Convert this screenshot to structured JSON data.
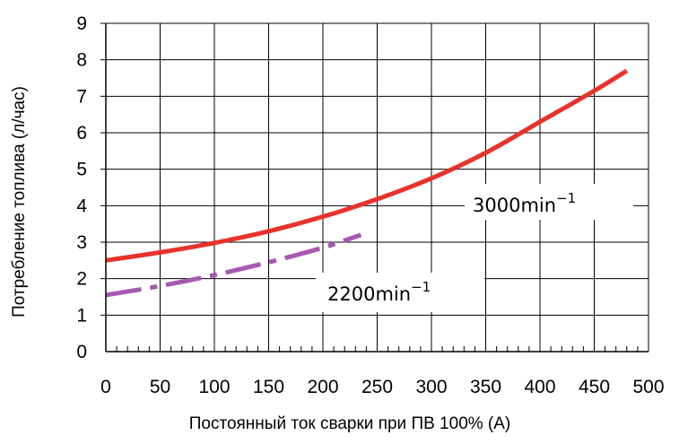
{
  "chart_data": {
    "type": "line",
    "title": "",
    "xlabel": "Постоянный ток сварки при ПВ 100% (A)",
    "ylabel": "Потребление топлива (л/час)",
    "xlim": [
      0,
      500
    ],
    "ylim": [
      0,
      9
    ],
    "xticks": [
      "0",
      "50",
      "100",
      "150",
      "200",
      "250",
      "300",
      "350",
      "400",
      "450",
      "500"
    ],
    "yticks": [
      "0",
      "1",
      "2",
      "3",
      "4",
      "5",
      "6",
      "7",
      "8",
      "9"
    ],
    "grid": true,
    "series": [
      {
        "name": "3000min",
        "superscript": "−1",
        "color": "#e8322b",
        "style": "solid",
        "x": [
          0,
          50,
          100,
          150,
          200,
          250,
          300,
          350,
          400,
          450,
          480
        ],
        "y": [
          2.5,
          2.72,
          2.98,
          3.3,
          3.7,
          4.18,
          4.75,
          5.45,
          6.3,
          7.15,
          7.7
        ]
      },
      {
        "name": "2200min",
        "superscript": "−1",
        "color": "#a659b0",
        "style": "dashdot",
        "x": [
          0,
          50,
          100,
          150,
          200,
          235
        ],
        "y": [
          1.55,
          1.8,
          2.1,
          2.45,
          2.85,
          3.2
        ]
      }
    ]
  }
}
